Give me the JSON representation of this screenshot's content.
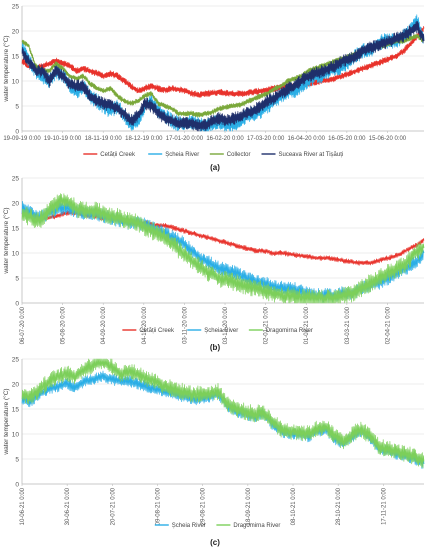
{
  "chart_data": [
    {
      "type": "line",
      "panel_label": "(a)",
      "ylabel": "water temperature (°C)",
      "ylim": [
        0,
        25
      ],
      "yticks": [
        0,
        5,
        10,
        15,
        20,
        25
      ],
      "xticks": [
        "19-09-19 0:00",
        "19-10-19 0:00",
        "18-11-19 0:00",
        "18-12-19 0:00",
        "17-01-20 0:00",
        "16-02-20 0:00",
        "17-03-20 0:00",
        "16-04-20 0:00",
        "16-05-20 0:00",
        "15-06-20 0:00"
      ],
      "grid": true,
      "legend_position": "bottom",
      "series": [
        {
          "name": "Cetății Creek",
          "color": "#e8322b",
          "values": [
            14,
            13,
            12.5,
            13,
            13.5,
            14,
            13.5,
            13,
            12,
            12.5,
            12,
            11.5,
            11,
            11.5,
            11,
            10,
            9,
            8,
            8.5,
            9,
            8.5,
            8.2,
            8.5,
            8.3,
            8,
            7.5,
            7.2,
            7.5,
            7.6,
            7.8,
            7.6,
            7.5,
            7.4,
            7.6,
            7.8,
            8,
            8.2,
            8.5,
            8.8,
            9,
            9,
            9.3,
            9.5,
            9.8,
            10,
            10.2,
            10.5,
            11,
            11.5,
            12,
            12.5,
            13,
            13.5,
            14,
            14.5,
            15,
            16,
            17.5,
            19,
            20.5
          ]
        },
        {
          "name": "Șcheia River",
          "color": "#2aaee6",
          "values": [
            17,
            14,
            12,
            11,
            10,
            12,
            11,
            9,
            8,
            9,
            7,
            6,
            5,
            4,
            5,
            3,
            1.5,
            2,
            5,
            6,
            4,
            3,
            2,
            1.5,
            1.5,
            2,
            1.5,
            1,
            1.5,
            2,
            1,
            1.5,
            2,
            3,
            3.5,
            4,
            5,
            6,
            7,
            8,
            8,
            9,
            10,
            11,
            11,
            12,
            12.5,
            13,
            14,
            15,
            16,
            16,
            17,
            18,
            18,
            18,
            19,
            20,
            22,
            18
          ]
        },
        {
          "name": "Collector",
          "color": "#7aa83a",
          "values": [
            18,
            17,
            13,
            12,
            12,
            13.5,
            12.5,
            11,
            10.5,
            11,
            9.5,
            8.5,
            8,
            8.5,
            7,
            6,
            5.5,
            6,
            7,
            7.5,
            5.5,
            5,
            4.5,
            3.5,
            3.5,
            3.5,
            3.2,
            3.5,
            3.8,
            4.5,
            4.8,
            5,
            5.2,
            5.8,
            6.5,
            7,
            7.5,
            8.5,
            9,
            10,
            10.5,
            11,
            12,
            12.5,
            13,
            13.5,
            14,
            14.5,
            15,
            15.5,
            16,
            16.5,
            17,
            17,
            17.5,
            18,
            18,
            18.5,
            19,
            18
          ]
        },
        {
          "name": "Suceava River at Tișăuți",
          "color": "#1f2f6b",
          "values": [
            16,
            14,
            12,
            12,
            10,
            12,
            11,
            9.5,
            9,
            9,
            7,
            6,
            5.5,
            5,
            4.5,
            3.5,
            2,
            3,
            5.5,
            5,
            3.5,
            2.5,
            2,
            1.5,
            1.5,
            1.5,
            1,
            1.2,
            2,
            2.5,
            2,
            2.5,
            3,
            3.5,
            4,
            5,
            6,
            6.5,
            7.5,
            8.5,
            9,
            10,
            11,
            11.5,
            12,
            12.5,
            13,
            14,
            14.5,
            15,
            16,
            16.5,
            17,
            17.5,
            18,
            18.5,
            19,
            20,
            21,
            18
          ]
        }
      ]
    },
    {
      "type": "line",
      "panel_label": "(b)",
      "ylabel": "water temperature (°C)",
      "ylim": [
        0,
        25
      ],
      "yticks": [
        0,
        5,
        10,
        15,
        20,
        25
      ],
      "xticks": [
        "06-07-20 0:00",
        "05-08-20 0:00",
        "04-09-20 0:00",
        "04-10-20 0:00",
        "03-11-20 0:00",
        "03-12-20 0:00",
        "02-01-21 0:00",
        "01-02-21 0:00",
        "03-03-21 0:00",
        "02-04-21 0:00"
      ],
      "grid": true,
      "legend_position": "bottom",
      "series": [
        {
          "name": "Cetății Creek",
          "color": "#e8322b",
          "values": [
            18,
            17.5,
            17,
            17,
            17.5,
            18,
            18,
            17.5,
            17.5,
            17,
            17,
            16.5,
            16.5,
            16,
            16,
            15.5,
            15.5,
            15,
            14.5,
            14,
            13.5,
            13,
            12.5,
            12,
            11.5,
            11,
            10.5,
            10.5,
            10,
            10,
            9.8,
            9.5,
            9.3,
            9,
            9,
            8.8,
            8.5,
            8.2,
            8,
            8,
            8.5,
            9,
            9.5,
            10.5,
            11.5,
            12.5
          ]
        },
        {
          "name": "Șcheia River",
          "color": "#2aaee6",
          "values": [
            19,
            18,
            17,
            18,
            19,
            19,
            18.5,
            18,
            18,
            17.5,
            17,
            16.5,
            16,
            16,
            15.5,
            14.5,
            14,
            13,
            12,
            10.5,
            9,
            8,
            7,
            6.5,
            6,
            5,
            4.5,
            4,
            3.5,
            3,
            3,
            2.5,
            2,
            1.5,
            1.5,
            1.5,
            2,
            2,
            3,
            3.5,
            4,
            5,
            6,
            7,
            8,
            10
          ]
        },
        {
          "name": "Dragomirna River",
          "color": "#7ccf5a",
          "values": [
            18,
            17,
            16.5,
            18.5,
            20,
            20.5,
            19,
            18.5,
            18.5,
            18,
            17.5,
            17,
            16.5,
            16,
            15,
            14,
            13,
            11.5,
            10,
            8.5,
            7,
            6,
            5,
            4.5,
            4,
            3.5,
            3,
            2.5,
            2,
            1.5,
            1.5,
            1,
            1,
            0.8,
            0.8,
            1,
            1.5,
            2,
            3,
            4,
            5,
            6,
            7,
            8,
            10,
            11
          ]
        }
      ]
    },
    {
      "type": "line",
      "panel_label": "(c)",
      "ylabel": "water temperature (°C)",
      "ylim": [
        0,
        25
      ],
      "yticks": [
        0,
        5,
        10,
        15,
        20,
        25
      ],
      "xticks": [
        "10-06-21 0:00",
        "30-06-21 0:00",
        "20-07-21 0:00",
        "09-08-21 0:00",
        "29-08-21 0:00",
        "18-09-21 0:00",
        "08-10-21 0:00",
        "28-10-21 0:00",
        "17-11-21 0:00"
      ],
      "grid": true,
      "legend_position": "bottom",
      "series": [
        {
          "name": "Șcheia River",
          "color": "#2aaee6",
          "values": [
            17,
            16.5,
            18,
            19,
            19.5,
            20,
            19.5,
            20.5,
            21,
            21.5,
            21,
            20.5,
            20.5,
            20,
            19.5,
            19,
            18.5,
            18,
            17.5,
            17,
            17,
            17.5,
            18,
            15.5,
            14.5,
            14,
            13.5,
            14,
            12,
            10.5,
            10,
            10,
            9.5,
            10.5,
            11,
            9,
            8,
            9.5,
            10.5,
            9,
            7,
            6.5,
            6,
            5.5,
            5,
            4
          ]
        },
        {
          "name": "Dragomirna River",
          "color": "#7ccf5a",
          "values": [
            18,
            17.5,
            19,
            20.5,
            21.5,
            22,
            21.5,
            23,
            24,
            24.5,
            23.5,
            22,
            22.5,
            22,
            21,
            20.5,
            19.5,
            19,
            18.5,
            18,
            18,
            18,
            18.5,
            16,
            15,
            14.5,
            14,
            14.5,
            12.5,
            11,
            10.5,
            10.5,
            10,
            11,
            11.5,
            9.5,
            8.5,
            10,
            11,
            9.5,
            7.5,
            7,
            6.5,
            6,
            5.5,
            4.5
          ]
        }
      ]
    }
  ]
}
